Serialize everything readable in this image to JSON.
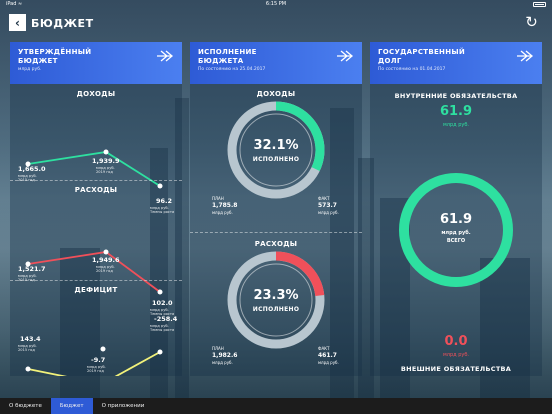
{
  "status": {
    "time": "6:15 PM",
    "left": "iPad ≈"
  },
  "header": {
    "title": "БЮДЖЕТ",
    "back_icon": "‹",
    "refresh_icon": "↻"
  },
  "budget": {
    "head_title_1": "УТВЕРЖДЁННЫЙ",
    "head_title_2": "БЮДЖЕТ",
    "head_sub": "млрд руб.",
    "income": {
      "title": "ДОХОДЫ",
      "a_val": "1,665.0",
      "a_sub": "млрд руб.\n2015 год",
      "b_val": "1,939.9",
      "b_sub": "млрд руб.\n2019 год",
      "c_val": "96.2",
      "c_sub": "млрд руб.\nТемпы роста"
    },
    "expense": {
      "title": "РАСХОДЫ",
      "a_val": "1,521.7",
      "a_sub": "млрд руб.\n2015 год",
      "b_val": "1,949.6",
      "b_sub": "млрд руб.\n2019 год",
      "c_val": "102.0",
      "c_sub": "млрд руб.\nТемпы роста"
    },
    "deficit": {
      "title": "ДЕФИЦИТ",
      "a_val": "143.4",
      "a_sub": "млрд руб.\n2015 год",
      "b_val": "-9.7",
      "b_sub": "млрд руб.\n2019 год",
      "c_val": "-258.4",
      "c_sub": "млрд руб.\nТемпы роста"
    }
  },
  "execution": {
    "head_title_1": "ИСПОЛНЕНИЕ",
    "head_title_2": "БЮДЖЕТА",
    "head_sub": "По состоянию на 25.04.2017",
    "income": {
      "title": "ДОХОДЫ",
      "pct": "32.1%",
      "caption": "ИСПОЛНЕНО",
      "fraction": 0.321,
      "plan_l": "ПЛАН",
      "plan_v": "1,785.8",
      "plan_u": "млрд руб.",
      "fact_l": "ФАКТ",
      "fact_v": "573.7",
      "fact_u": "млрд руб."
    },
    "expense": {
      "title": "РАСХОДЫ",
      "pct": "23.3%",
      "caption": "ИСПОЛНЕНО",
      "fraction": 0.233,
      "plan_l": "ПЛАН",
      "plan_v": "1,982.6",
      "plan_u": "млрд руб.",
      "fact_l": "ФАКТ",
      "fact_v": "461.7",
      "fact_u": "млрд руб."
    }
  },
  "debt": {
    "head_title_1": "ГОСУДАРСТВЕННЫЙ",
    "head_title_2": "ДОЛГ",
    "head_sub": "По состоянию на 01.04.2017",
    "internal_title": "ВНУТРЕННИЕ ОБЯЗАТЕЛЬСТВА",
    "internal_val": "61.9",
    "internal_unit": "млрд руб.",
    "total_val": "61.9",
    "total_unit": "млрд руб.",
    "total_caption": "ВСЕГО",
    "external_val": "0.0",
    "external_unit": "млрд руб.",
    "external_title": "ВНЕШНИЕ ОБЯЗАТЕЛЬСТВА"
  },
  "tabs": [
    "О бюджете",
    "Бюджет",
    "О приложении"
  ],
  "colors": {
    "green": "#2ee0a0",
    "red": "#f0505a",
    "yellow": "#f2f27a",
    "blue": "#2e5bd6",
    "ring_gray": "#b8c6cf"
  }
}
